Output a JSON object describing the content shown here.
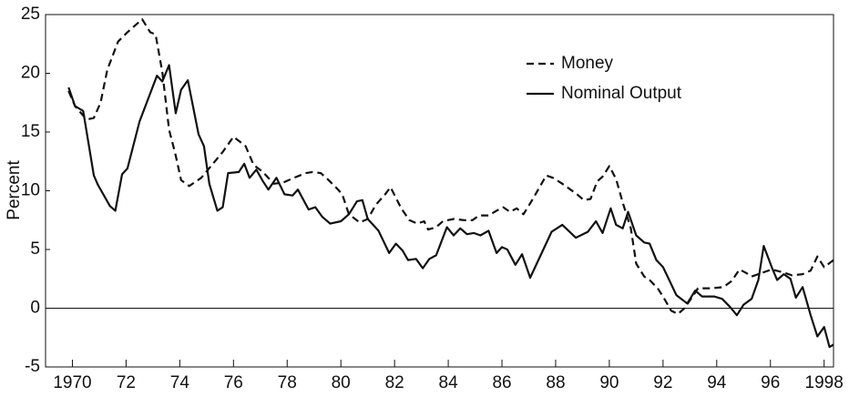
{
  "chart_data": {
    "type": "line",
    "y_label": "Percent",
    "xlim": [
      1969,
      1998.35
    ],
    "ylim": [
      -5,
      25
    ],
    "yticks": [
      -5,
      0,
      5,
      10,
      15,
      20,
      25
    ],
    "xticks": [
      {
        "value": 1970,
        "label": "1970"
      },
      {
        "value": 1972,
        "label": "72"
      },
      {
        "value": 1974,
        "label": "74"
      },
      {
        "value": 1976,
        "label": "76"
      },
      {
        "value": 1978,
        "label": "78"
      },
      {
        "value": 1980,
        "label": "80"
      },
      {
        "value": 1982,
        "label": "82"
      },
      {
        "value": 1984,
        "label": "84"
      },
      {
        "value": 1986,
        "label": "86"
      },
      {
        "value": 1988,
        "label": "88"
      },
      {
        "value": 1990,
        "label": "90"
      },
      {
        "value": 1992,
        "label": "92"
      },
      {
        "value": 1994,
        "label": "94"
      },
      {
        "value": 1996,
        "label": "96"
      },
      {
        "value": 1998,
        "label": "1998"
      }
    ],
    "legend": "upper right",
    "series": [
      {
        "name": "Money",
        "color": "#111111",
        "dash": true,
        "x": [
          1969.86,
          1970.1,
          1970.4,
          1970.6,
          1970.8,
          1971.05,
          1971.3,
          1971.7,
          1972.05,
          1972.4,
          1972.6,
          1972.9,
          1973.1,
          1973.35,
          1973.6,
          1973.85,
          1974.05,
          1974.35,
          1974.8,
          1975.2,
          1975.6,
          1976.0,
          1976.45,
          1976.75,
          1977.1,
          1977.5,
          1977.85,
          1978.25,
          1978.7,
          1978.95,
          1979.25,
          1979.5,
          1979.85,
          1980.05,
          1980.3,
          1980.7,
          1981.0,
          1981.3,
          1981.65,
          1981.85,
          1982.25,
          1982.55,
          1982.85,
          1983.1,
          1983.25,
          1983.55,
          1983.8,
          1984.2,
          1984.6,
          1984.9,
          1985.15,
          1985.5,
          1985.8,
          1986.05,
          1986.3,
          1986.55,
          1986.8,
          1987.1,
          1987.4,
          1987.65,
          1987.9,
          1988.25,
          1988.55,
          1988.8,
          1989.05,
          1989.3,
          1989.55,
          1989.75,
          1990.0,
          1990.25,
          1990.5,
          1990.8,
          1991.0,
          1991.3,
          1991.5,
          1991.8,
          1992.05,
          1992.3,
          1992.55,
          1992.8,
          1993.1,
          1993.3,
          1993.8,
          1994.25,
          1994.55,
          1994.85,
          1995.1,
          1995.3,
          1995.8,
          1996.05,
          1996.55,
          1996.8,
          1997.2,
          1997.5,
          1997.75,
          1998.0,
          1998.35
        ],
        "values": [
          18.5,
          17.2,
          16.4,
          16.1,
          16.2,
          17.5,
          20.3,
          22.7,
          23.5,
          24.2,
          24.6,
          23.5,
          23.3,
          20.1,
          15.2,
          13.0,
          10.9,
          10.4,
          11.1,
          12.2,
          13.3,
          14.6,
          13.8,
          12.2,
          11.6,
          10.6,
          10.7,
          11.1,
          11.5,
          11.6,
          11.5,
          11.0,
          10.2,
          9.7,
          8.0,
          7.3,
          7.6,
          8.8,
          9.7,
          10.3,
          8.5,
          7.5,
          7.2,
          7.4,
          6.7,
          6.9,
          7.4,
          7.6,
          7.5,
          7.5,
          7.9,
          7.9,
          8.3,
          8.6,
          8.2,
          8.5,
          8.0,
          9.1,
          10.3,
          11.3,
          11.1,
          10.6,
          10.1,
          9.7,
          9.2,
          9.3,
          10.8,
          11.2,
          12.1,
          11.0,
          9.0,
          6.8,
          3.8,
          2.7,
          2.4,
          1.7,
          0.8,
          -0.2,
          -0.5,
          0.0,
          1.0,
          1.7,
          1.7,
          1.8,
          2.3,
          3.3,
          3.0,
          2.7,
          3.1,
          3.3,
          3.0,
          2.8,
          2.9,
          3.2,
          4.4,
          3.5,
          4.1
        ]
      },
      {
        "name": "Nominal Output",
        "color": "#111111",
        "dash": false,
        "x": [
          1969.86,
          1970.1,
          1970.4,
          1970.8,
          1970.95,
          1971.4,
          1971.6,
          1971.85,
          1972.05,
          1972.5,
          1973.15,
          1973.35,
          1973.6,
          1973.85,
          1974.05,
          1974.3,
          1974.7,
          1974.9,
          1975.1,
          1975.4,
          1975.6,
          1975.8,
          1976.2,
          1976.4,
          1976.6,
          1976.85,
          1977.1,
          1977.3,
          1977.6,
          1977.9,
          1978.2,
          1978.4,
          1978.8,
          1979.05,
          1979.3,
          1979.6,
          1980.0,
          1980.3,
          1980.6,
          1980.8,
          1981.0,
          1981.4,
          1981.8,
          1982.05,
          1982.3,
          1982.5,
          1982.8,
          1983.05,
          1983.3,
          1983.55,
          1983.95,
          1984.2,
          1984.45,
          1984.7,
          1984.95,
          1985.2,
          1985.5,
          1985.8,
          1986.0,
          1986.2,
          1986.5,
          1986.75,
          1987.05,
          1987.85,
          1988.25,
          1988.75,
          1989.2,
          1989.5,
          1989.75,
          1990.05,
          1990.25,
          1990.5,
          1990.7,
          1991.0,
          1991.3,
          1991.5,
          1991.75,
          1992.0,
          1992.5,
          1992.9,
          1993.2,
          1993.45,
          1993.9,
          1994.2,
          1994.5,
          1994.75,
          1995.0,
          1995.3,
          1995.55,
          1995.75,
          1996.05,
          1996.25,
          1996.5,
          1996.75,
          1996.95,
          1997.2,
          1997.5,
          1997.75,
          1998.0,
          1998.2,
          1998.35
        ],
        "values": [
          18.8,
          17.2,
          16.8,
          11.3,
          10.5,
          8.7,
          8.3,
          11.4,
          11.9,
          15.9,
          19.8,
          19.3,
          20.7,
          16.6,
          18.6,
          19.4,
          14.8,
          13.8,
          10.6,
          8.3,
          8.6,
          11.5,
          11.6,
          12.3,
          11.1,
          11.8,
          10.8,
          10.1,
          11.1,
          9.7,
          9.6,
          10.1,
          8.4,
          8.6,
          7.8,
          7.2,
          7.4,
          8.0,
          9.1,
          9.2,
          7.6,
          6.6,
          4.7,
          5.5,
          4.9,
          4.1,
          4.2,
          3.4,
          4.2,
          4.5,
          6.9,
          6.2,
          6.8,
          6.3,
          6.4,
          6.2,
          6.6,
          4.7,
          5.2,
          5.0,
          3.7,
          4.6,
          2.6,
          6.5,
          7.1,
          6.0,
          6.5,
          7.4,
          6.4,
          8.5,
          7.1,
          6.8,
          8.2,
          6.2,
          5.6,
          5.5,
          4.1,
          3.5,
          1.1,
          0.4,
          1.5,
          1.0,
          1.0,
          0.8,
          0.1,
          -0.6,
          0.3,
          0.8,
          2.4,
          5.3,
          3.5,
          2.4,
          2.9,
          2.5,
          0.9,
          1.8,
          -0.6,
          -2.4,
          -1.6,
          -3.3,
          -3.1
        ]
      }
    ]
  }
}
